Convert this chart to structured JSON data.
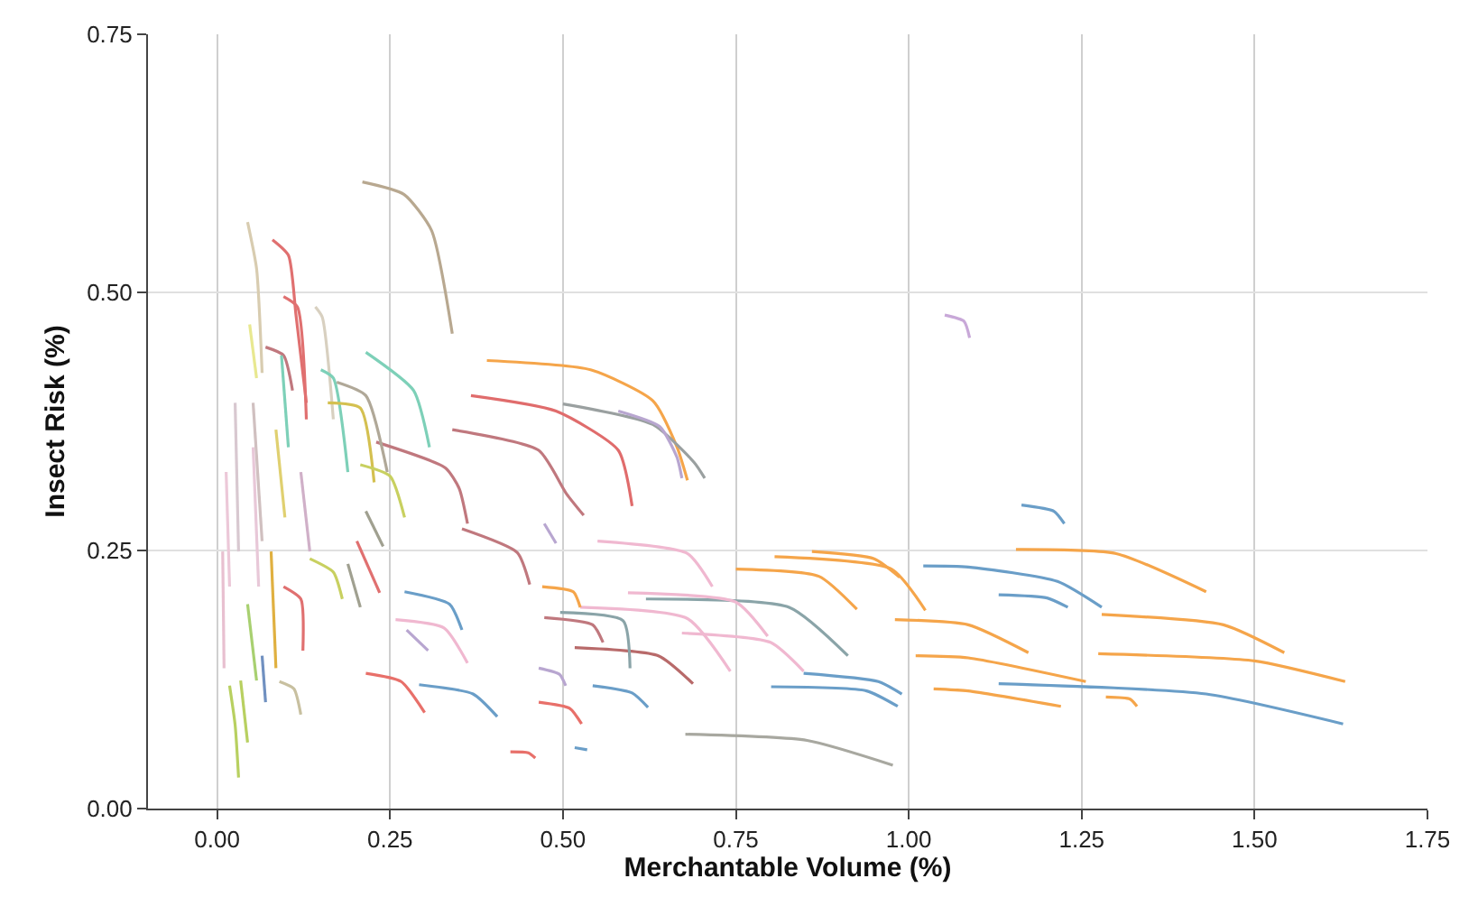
{
  "chart_data": {
    "type": "line",
    "xlabel": "Merchantable Volume (%)",
    "ylabel": "Insect Risk (%)",
    "xlim": [
      -0.1,
      1.75
    ],
    "ylim": [
      0,
      0.75
    ],
    "xticks": [
      {
        "value": 0,
        "label": "0.00"
      },
      {
        "value": 0.25,
        "label": "0.25"
      },
      {
        "value": 0.5,
        "label": "0.50"
      },
      {
        "value": 0.75,
        "label": "0.75"
      },
      {
        "value": 1,
        "label": "1.00"
      },
      {
        "value": 1.25,
        "label": "1.25"
      },
      {
        "value": 1.5,
        "label": "1.50"
      },
      {
        "value": 1.75,
        "label": "1.75"
      }
    ],
    "yticks": [
      {
        "value": 0,
        "label": "0.00"
      },
      {
        "value": 0.25,
        "label": "0.25"
      },
      {
        "value": 0.5,
        "label": "0.50"
      },
      {
        "value": 0.75,
        "label": "0.75"
      }
    ],
    "grid": true,
    "line_style": "solid",
    "series": [
      {
        "color": "#b8a890",
        "x": [
          0.21,
          0.27,
          0.31,
          0.34
        ],
        "values": [
          0.607,
          0.595,
          0.56,
          0.46
        ]
      },
      {
        "color": "#f5a54a",
        "x": [
          0.39,
          0.54,
          0.63,
          0.665,
          0.68
        ],
        "values": [
          0.434,
          0.425,
          0.395,
          0.35,
          0.318
        ]
      },
      {
        "color": "#e06c6c",
        "x": [
          0.367,
          0.49,
          0.58,
          0.6
        ],
        "values": [
          0.4,
          0.385,
          0.347,
          0.293
        ]
      },
      {
        "color": "#9aa0a0",
        "x": [
          0.5,
          0.63,
          0.69,
          0.705
        ],
        "values": [
          0.392,
          0.372,
          0.335,
          0.32
        ]
      },
      {
        "color": "#b8a6d0",
        "x": [
          0.58,
          0.64,
          0.665,
          0.672
        ],
        "values": [
          0.385,
          0.37,
          0.34,
          0.32
        ]
      },
      {
        "color": "#c0787e",
        "x": [
          0.34,
          0.465,
          0.505,
          0.53
        ],
        "values": [
          0.367,
          0.347,
          0.305,
          0.284
        ]
      },
      {
        "color": "#c0787e",
        "x": [
          0.23,
          0.33,
          0.35,
          0.362
        ],
        "values": [
          0.355,
          0.33,
          0.31,
          0.276
        ]
      },
      {
        "color": "#7dd0b8",
        "x": [
          0.215,
          0.284,
          0.307
        ],
        "values": [
          0.442,
          0.405,
          0.35
        ]
      },
      {
        "color": "#c0787e",
        "x": [
          0.354,
          0.434,
          0.452
        ],
        "values": [
          0.271,
          0.248,
          0.217
        ]
      },
      {
        "color": "#6a9ec8",
        "x": [
          0.271,
          0.336,
          0.354
        ],
        "values": [
          0.21,
          0.198,
          0.173
        ]
      },
      {
        "color": "#e8706a",
        "x": [
          0.215,
          0.266,
          0.3
        ],
        "values": [
          0.131,
          0.123,
          0.093
        ]
      },
      {
        "color": "#6a9ec8",
        "x": [
          0.292,
          0.37,
          0.405
        ],
        "values": [
          0.12,
          0.111,
          0.089
        ]
      },
      {
        "color": "#f0b8d0",
        "x": [
          0.258,
          0.328,
          0.362
        ],
        "values": [
          0.183,
          0.175,
          0.141
        ]
      },
      {
        "color": "#b8a6d0",
        "x": [
          0.274,
          0.305
        ],
        "values": [
          0.173,
          0.153
        ]
      },
      {
        "color": "#b8a6d0",
        "x": [
          0.473,
          0.49
        ],
        "values": [
          0.276,
          0.257
        ]
      },
      {
        "color": "#f0b8d0",
        "x": [
          0.55,
          0.68,
          0.716
        ],
        "values": [
          0.259,
          0.247,
          0.215
        ]
      },
      {
        "color": "#f5a54a",
        "x": [
          0.75,
          0.87,
          0.925
        ],
        "values": [
          0.232,
          0.225,
          0.193
        ]
      },
      {
        "color": "#f5a54a",
        "x": [
          0.806,
          0.975,
          1.024
        ],
        "values": [
          0.244,
          0.232,
          0.192
        ]
      },
      {
        "color": "#f5a54a",
        "x": [
          0.86,
          0.95,
          0.987
        ],
        "values": [
          0.249,
          0.242,
          0.224
        ]
      },
      {
        "color": "#8aa4a8",
        "x": [
          0.62,
          0.827,
          0.912
        ],
        "values": [
          0.203,
          0.195,
          0.148
        ]
      },
      {
        "color": "#6a9ec8",
        "x": [
          0.848,
          0.956,
          0.99
        ],
        "values": [
          0.131,
          0.123,
          0.111
        ]
      },
      {
        "color": "#6a9ec8",
        "x": [
          0.801,
          0.939,
          0.984
        ],
        "values": [
          0.118,
          0.114,
          0.099
        ]
      },
      {
        "color": "#a8a8a0",
        "x": [
          0.677,
          0.853,
          0.977
        ],
        "values": [
          0.072,
          0.066,
          0.042
        ]
      },
      {
        "color": "#c8a8d8",
        "x": [
          1.052,
          1.08,
          1.088
        ],
        "values": [
          0.478,
          0.472,
          0.456
        ]
      },
      {
        "color": "#f0b8d0",
        "x": [
          0.594,
          0.75,
          0.796
        ],
        "values": [
          0.209,
          0.2,
          0.167
        ]
      },
      {
        "color": "#f0b8d0",
        "x": [
          0.525,
          0.68,
          0.742
        ],
        "values": [
          0.195,
          0.184,
          0.133
        ]
      },
      {
        "color": "#f0b8d0",
        "x": [
          0.672,
          0.8,
          0.848
        ],
        "values": [
          0.17,
          0.161,
          0.133
        ]
      },
      {
        "color": "#c0787e",
        "x": [
          0.473,
          0.543,
          0.558
        ],
        "values": [
          0.185,
          0.178,
          0.161
        ]
      },
      {
        "color": "#b86a6a",
        "x": [
          0.517,
          0.638,
          0.688
        ],
        "values": [
          0.156,
          0.148,
          0.121
        ]
      },
      {
        "color": "#8aa4a8",
        "x": [
          0.496,
          0.587,
          0.597
        ],
        "values": [
          0.19,
          0.182,
          0.136
        ]
      },
      {
        "color": "#6a9ec8",
        "x": [
          0.543,
          0.6,
          0.623
        ],
        "values": [
          0.119,
          0.112,
          0.098
        ]
      },
      {
        "color": "#b8a6d0",
        "x": [
          0.465,
          0.495,
          0.504
        ],
        "values": [
          0.136,
          0.13,
          0.119
        ]
      },
      {
        "color": "#e8706a",
        "x": [
          0.465,
          0.51,
          0.527
        ],
        "values": [
          0.103,
          0.097,
          0.082
        ]
      },
      {
        "color": "#f5a54a",
        "x": [
          0.47,
          0.515,
          0.525
        ],
        "values": [
          0.215,
          0.21,
          0.195
        ]
      },
      {
        "color": "#6a9ec8",
        "x": [
          0.517,
          0.535
        ],
        "values": [
          0.059,
          0.057
        ]
      },
      {
        "color": "#e8706a",
        "x": [
          0.424,
          0.45,
          0.46
        ],
        "values": [
          0.055,
          0.054,
          0.049
        ]
      },
      {
        "color": "#6a9ec8",
        "x": [
          1.163,
          1.21,
          1.225
        ],
        "values": [
          0.294,
          0.288,
          0.276
        ]
      },
      {
        "color": "#f5a54a",
        "x": [
          1.155,
          1.3,
          1.43
        ],
        "values": [
          0.251,
          0.247,
          0.21
        ]
      },
      {
        "color": "#6a9ec8",
        "x": [
          1.021,
          1.086,
          1.215,
          1.279
        ],
        "values": [
          0.235,
          0.234,
          0.22,
          0.195
        ]
      },
      {
        "color": "#6a9ec8",
        "x": [
          1.13,
          1.2,
          1.23
        ],
        "values": [
          0.207,
          0.204,
          0.195
        ]
      },
      {
        "color": "#f5a54a",
        "x": [
          1.279,
          1.455,
          1.543
        ],
        "values": [
          0.188,
          0.178,
          0.151
        ]
      },
      {
        "color": "#f5a54a",
        "x": [
          0.98,
          1.086,
          1.173
        ],
        "values": [
          0.183,
          0.178,
          0.151
        ]
      },
      {
        "color": "#f5a54a",
        "x": [
          1.274,
          1.5,
          1.631
        ],
        "values": [
          0.15,
          0.143,
          0.123
        ]
      },
      {
        "color": "#f5a54a",
        "x": [
          1.01,
          1.086,
          1.256
        ],
        "values": [
          0.148,
          0.146,
          0.123
        ]
      },
      {
        "color": "#6a9ec8",
        "x": [
          1.13,
          1.43,
          1.628
        ],
        "values": [
          0.121,
          0.111,
          0.082
        ]
      },
      {
        "color": "#f5a54a",
        "x": [
          1.036,
          1.086,
          1.22
        ],
        "values": [
          0.116,
          0.114,
          0.099
        ]
      },
      {
        "color": "#f5a54a",
        "x": [
          1.285,
          1.32,
          1.33
        ],
        "values": [
          0.108,
          0.106,
          0.099
        ]
      },
      {
        "color": "#d8ccb0",
        "x": [
          0.044,
          0.057,
          0.065
        ],
        "values": [
          0.568,
          0.523,
          0.422
        ]
      },
      {
        "color": "#e07070",
        "x": [
          0.08,
          0.103,
          0.114,
          0.129
        ],
        "values": [
          0.551,
          0.536,
          0.478,
          0.393
        ]
      },
      {
        "color": "#e07070",
        "x": [
          0.096,
          0.116,
          0.129
        ],
        "values": [
          0.496,
          0.486,
          0.377
        ]
      },
      {
        "color": "#d8d0c0",
        "x": [
          0.142,
          0.152,
          0.168
        ],
        "values": [
          0.486,
          0.476,
          0.377
        ]
      },
      {
        "color": "#e8e890",
        "x": [
          0.047,
          0.057
        ],
        "values": [
          0.469,
          0.417
        ]
      },
      {
        "color": "#c0787e",
        "x": [
          0.07,
          0.096,
          0.109
        ],
        "values": [
          0.447,
          0.439,
          0.405
        ]
      },
      {
        "color": "#7dd0b8",
        "x": [
          0.093,
          0.103
        ],
        "values": [
          0.439,
          0.35
        ]
      },
      {
        "color": "#7dd0b8",
        "x": [
          0.15,
          0.168,
          0.189
        ],
        "values": [
          0.425,
          0.417,
          0.326
        ]
      },
      {
        "color": "#b0a898",
        "x": [
          0.173,
          0.215,
          0.246
        ],
        "values": [
          0.413,
          0.4,
          0.326
        ]
      },
      {
        "color": "#d4c050",
        "x": [
          0.16,
          0.207,
          0.227
        ],
        "values": [
          0.393,
          0.388,
          0.316
        ]
      },
      {
        "color": "#c8d060",
        "x": [
          0.207,
          0.25,
          0.271
        ],
        "values": [
          0.333,
          0.322,
          0.282
        ]
      },
      {
        "color": "#a0a090",
        "x": [
          0.215,
          0.24
        ],
        "values": [
          0.288,
          0.254
        ]
      },
      {
        "color": "#a0a090",
        "x": [
          0.189,
          0.207
        ],
        "values": [
          0.237,
          0.195
        ]
      },
      {
        "color": "#e07070",
        "x": [
          0.202,
          0.235
        ],
        "values": [
          0.259,
          0.209
        ]
      },
      {
        "color": "#c8d060",
        "x": [
          0.134,
          0.168,
          0.181
        ],
        "values": [
          0.242,
          0.229,
          0.203
        ]
      },
      {
        "color": "#d8c8d0",
        "x": [
          0.026,
          0.031
        ],
        "values": [
          0.393,
          0.249
        ]
      },
      {
        "color": "#ecc8d8",
        "x": [
          0.013,
          0.018
        ],
        "values": [
          0.326,
          0.215
        ]
      },
      {
        "color": "#d0c0c0",
        "x": [
          0.052,
          0.065
        ],
        "values": [
          0.393,
          0.259
        ]
      },
      {
        "color": "#e8c0d0",
        "x": [
          0.008,
          0.01
        ],
        "values": [
          0.249,
          0.136
        ]
      },
      {
        "color": "#b8d060",
        "x": [
          0.018,
          0.026,
          0.031
        ],
        "values": [
          0.119,
          0.081,
          0.03
        ]
      },
      {
        "color": "#b8d060",
        "x": [
          0.034,
          0.044
        ],
        "values": [
          0.124,
          0.064
        ]
      },
      {
        "color": "#e0b040",
        "x": [
          0.078,
          0.085
        ],
        "values": [
          0.249,
          0.136
        ]
      },
      {
        "color": "#e07070",
        "x": [
          0.096,
          0.121,
          0.124
        ],
        "values": [
          0.215,
          0.203,
          0.153
        ]
      },
      {
        "color": "#7090c0",
        "x": [
          0.065,
          0.07
        ],
        "values": [
          0.148,
          0.103
        ]
      },
      {
        "color": "#c8c0a0",
        "x": [
          0.09,
          0.111,
          0.121
        ],
        "values": [
          0.123,
          0.116,
          0.091
        ]
      },
      {
        "color": "#a8d070",
        "x": [
          0.044,
          0.057
        ],
        "values": [
          0.198,
          0.124
        ]
      },
      {
        "color": "#e0d070",
        "x": [
          0.085,
          0.098
        ],
        "values": [
          0.367,
          0.282
        ]
      },
      {
        "color": "#e8c8d8",
        "x": [
          0.052,
          0.06
        ],
        "values": [
          0.35,
          0.215
        ]
      },
      {
        "color": "#d0b0c8",
        "x": [
          0.121,
          0.134
        ],
        "values": [
          0.326,
          0.249
        ]
      }
    ]
  }
}
